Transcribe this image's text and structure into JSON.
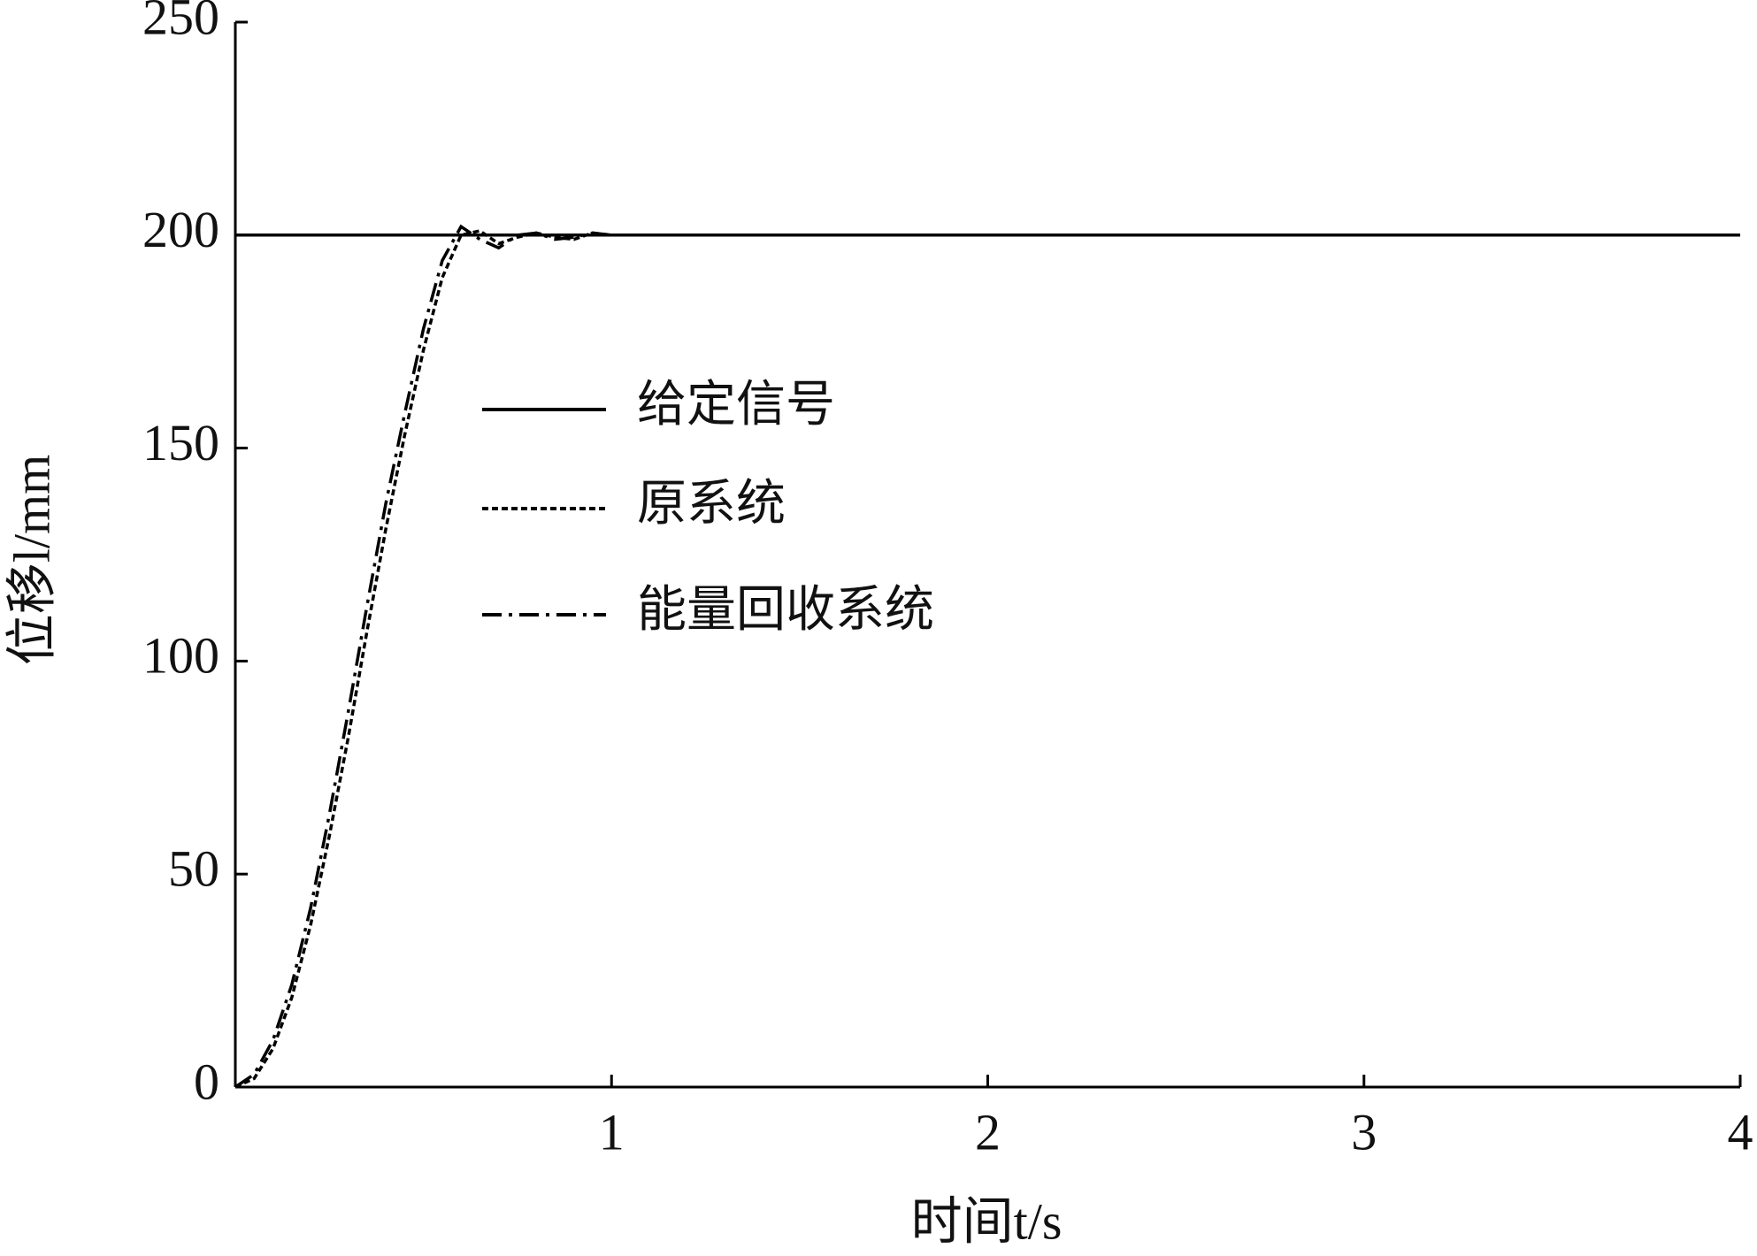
{
  "chart_data": {
    "type": "line",
    "xlabel": "时间t/s",
    "ylabel": "位移l/mm",
    "x": [
      0,
      0.05,
      0.1,
      0.15,
      0.2,
      0.25,
      0.3,
      0.35,
      0.4,
      0.45,
      0.5,
      0.55,
      0.6,
      0.65,
      0.7,
      0.75,
      0.8,
      0.85,
      0.9,
      0.95,
      1.0,
      1.5,
      2,
      2.5,
      3,
      3.5,
      4
    ],
    "series": [
      {
        "name": "给定信号",
        "color": "#000000",
        "linestyle": "solid",
        "values": [
          200,
          200,
          200,
          200,
          200,
          200,
          200,
          200,
          200,
          200,
          200,
          200,
          200,
          200,
          200,
          200,
          200,
          200,
          200,
          200,
          200,
          200,
          200,
          200,
          200,
          200,
          200
        ]
      },
      {
        "name": "原系统",
        "color": "#000000",
        "linestyle": "dotted",
        "values": [
          0,
          2,
          9,
          21,
          38,
          59,
          82,
          107,
          131,
          153,
          173,
          190,
          200,
          201,
          198,
          199.5,
          200.5,
          199.5,
          199,
          200.5,
          200,
          200,
          200,
          200,
          200,
          200,
          200
        ]
      },
      {
        "name": "能量回收系统",
        "color": "#000000",
        "linestyle": "dashdot",
        "values": [
          0,
          3,
          11,
          24,
          42,
          64,
          88,
          113,
          137,
          158,
          178,
          194,
          202,
          199,
          197,
          200,
          200.5,
          199,
          199.5,
          200.5,
          200,
          200,
          200,
          200,
          200,
          200,
          200
        ]
      }
    ],
    "xlim": [
      0,
      4
    ],
    "xticks": [
      1,
      2,
      3,
      4
    ],
    "ylim": [
      0,
      250
    ],
    "yticks": [
      0,
      50,
      100,
      150,
      200,
      250
    ],
    "legend": "center-left"
  }
}
